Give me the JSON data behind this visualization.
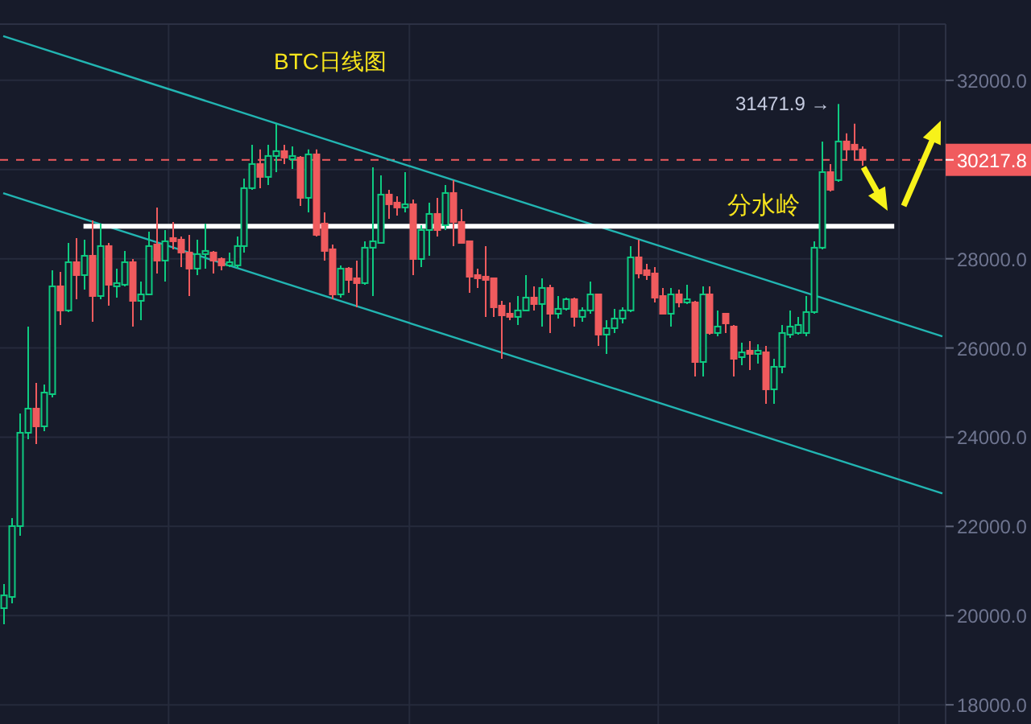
{
  "chart_data": {
    "type": "candlestick",
    "title": "BTC日线图",
    "categories": [
      null,
      null,
      null,
      null,
      null,
      null,
      null,
      null,
      null,
      null,
      null,
      null,
      null,
      null,
      null,
      null,
      null,
      null,
      null,
      null,
      null,
      null,
      null,
      null,
      null,
      null,
      null,
      null,
      null,
      null,
      null,
      null,
      null,
      null,
      null,
      null,
      null,
      null,
      null,
      null,
      null,
      null,
      null,
      null,
      null,
      null,
      null,
      null,
      null,
      null,
      null,
      null,
      null,
      null,
      null,
      null,
      null,
      null,
      null,
      null,
      null,
      null,
      null,
      null,
      null,
      null,
      null,
      null,
      null,
      null,
      null,
      null,
      null,
      null,
      null,
      null,
      null,
      null,
      null,
      null,
      null,
      null,
      null,
      null,
      null,
      null,
      null,
      null,
      null,
      null,
      null,
      null,
      null,
      null,
      null,
      null,
      null,
      null,
      null,
      null,
      null,
      null,
      null,
      null,
      null,
      null,
      null,
      null,
      null,
      null,
      null,
      null,
      null,
      null,
      null,
      null,
      null,
      null
    ],
    "ohlc": [
      [
        20166,
        20707,
        19805,
        20454
      ],
      [
        20418,
        22186,
        20274,
        22006
      ],
      [
        22006,
        24531,
        21790,
        24099
      ],
      [
        24099,
        26480,
        23954,
        24640
      ],
      [
        24640,
        25217,
        23846,
        24243
      ],
      [
        24243,
        25181,
        24135,
        25000
      ],
      [
        24964,
        27743,
        24892,
        27382
      ],
      [
        27382,
        27707,
        26516,
        26841
      ],
      [
        26841,
        28356,
        26805,
        27923
      ],
      [
        27923,
        28464,
        27093,
        27634
      ],
      [
        27634,
        28428,
        27310,
        28067
      ],
      [
        28067,
        28861,
        26588,
        27165
      ],
      [
        27165,
        28789,
        27093,
        28284
      ],
      [
        28284,
        28356,
        26949,
        27418
      ],
      [
        27382,
        27779,
        27129,
        27454
      ],
      [
        27418,
        28176,
        27382,
        27923
      ],
      [
        27923,
        27995,
        26480,
        27057
      ],
      [
        27057,
        27490,
        26624,
        27201
      ],
      [
        27201,
        28608,
        27201,
        28284
      ],
      [
        28320,
        29150,
        27670,
        27959
      ],
      [
        27959,
        28644,
        27490,
        28392
      ],
      [
        28464,
        28825,
        28212,
        28392
      ],
      [
        28428,
        28500,
        27815,
        28140
      ],
      [
        28140,
        28536,
        27165,
        27779
      ],
      [
        27779,
        28428,
        27634,
        28104
      ],
      [
        28104,
        28789,
        27779,
        28176
      ],
      [
        28140,
        28176,
        27670,
        27959
      ],
      [
        27995,
        28031,
        27743,
        27851
      ],
      [
        27851,
        28140,
        27815,
        27923
      ],
      [
        27851,
        28500,
        27779,
        28284
      ],
      [
        28284,
        29799,
        28140,
        29583
      ],
      [
        29583,
        30557,
        29547,
        30124
      ],
      [
        30124,
        30449,
        29583,
        29835
      ],
      [
        29835,
        30557,
        29655,
        30304
      ],
      [
        30304,
        31026,
        29943,
        30413
      ],
      [
        30413,
        30557,
        30124,
        30268
      ],
      [
        30232,
        30521,
        30016,
        30304
      ],
      [
        30268,
        30304,
        29186,
        29366
      ],
      [
        29366,
        30449,
        29041,
        30340
      ],
      [
        30340,
        30449,
        28500,
        28536
      ],
      [
        28789,
        29041,
        27959,
        28176
      ],
      [
        28212,
        28320,
        27093,
        27201
      ],
      [
        27201,
        27851,
        27129,
        27779
      ],
      [
        27779,
        27815,
        27237,
        27526
      ],
      [
        27562,
        27959,
        26913,
        27454
      ],
      [
        27454,
        28392,
        27418,
        28248
      ],
      [
        28248,
        30052,
        27165,
        28392
      ],
      [
        28356,
        29871,
        28356,
        29438
      ],
      [
        29438,
        29547,
        28897,
        29222
      ],
      [
        29258,
        29402,
        28969,
        29150
      ],
      [
        29150,
        29943,
        29041,
        29222
      ],
      [
        29222,
        29330,
        27634,
        27995
      ],
      [
        27995,
        28753,
        27815,
        28644
      ],
      [
        28644,
        29258,
        28067,
        29005
      ],
      [
        29005,
        29366,
        28500,
        28644
      ],
      [
        28753,
        29655,
        28644,
        29474
      ],
      [
        29474,
        29763,
        28284,
        28825
      ],
      [
        28825,
        29113,
        28356,
        28356
      ],
      [
        28392,
        28392,
        27237,
        27598
      ],
      [
        27634,
        27779,
        27346,
        27562
      ],
      [
        27598,
        28284,
        26697,
        27526
      ],
      [
        27562,
        27562,
        26697,
        26913
      ],
      [
        26949,
        27057,
        25758,
        26732
      ],
      [
        26768,
        27021,
        26624,
        26697
      ],
      [
        26697,
        27165,
        26516,
        26841
      ],
      [
        26841,
        27634,
        26841,
        27129
      ],
      [
        27129,
        27382,
        26841,
        26985
      ],
      [
        26985,
        27562,
        26480,
        27346
      ],
      [
        27346,
        27418,
        26336,
        26768
      ],
      [
        26768,
        27165,
        26660,
        26877
      ],
      [
        26877,
        27129,
        26841,
        27093
      ],
      [
        27093,
        27129,
        26480,
        26697
      ],
      [
        26697,
        26913,
        26588,
        26841
      ],
      [
        26841,
        27490,
        26768,
        27201
      ],
      [
        27201,
        27201,
        26047,
        26300
      ],
      [
        26300,
        26624,
        25867,
        26444
      ],
      [
        26444,
        26877,
        26336,
        26660
      ],
      [
        26660,
        26913,
        26552,
        26841
      ],
      [
        26841,
        28284,
        26805,
        28031
      ],
      [
        28031,
        28428,
        27562,
        27670
      ],
      [
        27743,
        27887,
        27526,
        27634
      ],
      [
        27670,
        27815,
        27021,
        27129
      ],
      [
        27165,
        27346,
        26768,
        26768
      ],
      [
        26768,
        27346,
        26480,
        27201
      ],
      [
        27201,
        27310,
        26913,
        27021
      ],
      [
        27021,
        27418,
        26985,
        27093
      ],
      [
        27021,
        27057,
        25361,
        25686
      ],
      [
        25686,
        27382,
        25361,
        27201
      ],
      [
        27201,
        27382,
        26300,
        26336
      ],
      [
        26336,
        26841,
        26264,
        26480
      ],
      [
        26768,
        26768,
        26336,
        26552
      ],
      [
        26480,
        26516,
        25361,
        25758
      ],
      [
        25794,
        26119,
        25614,
        25903
      ],
      [
        25939,
        26155,
        25506,
        25867
      ],
      [
        25867,
        26083,
        25650,
        25939
      ],
      [
        25903,
        26047,
        24748,
        25073
      ],
      [
        25073,
        25758,
        24748,
        25578
      ],
      [
        25578,
        26516,
        25433,
        26336
      ],
      [
        26300,
        26841,
        26228,
        26480
      ],
      [
        26336,
        26697,
        26300,
        26516
      ],
      [
        26336,
        27165,
        26264,
        26805
      ],
      [
        26805,
        28392,
        26768,
        28248
      ],
      [
        28248,
        30629,
        28212,
        29943
      ],
      [
        29943,
        30124,
        29511,
        29547
      ],
      [
        29763,
        31471.9,
        29727,
        30629
      ],
      [
        30629,
        30810,
        30196,
        30449
      ],
      [
        30557,
        31026,
        30232,
        30449
      ],
      [
        30449,
        30521,
        30088,
        30217.8
      ],
      null,
      null,
      null,
      null,
      null,
      null,
      null,
      null,
      null,
      null
    ],
    "colors": [
      "#0ecb81",
      "#0ecb81",
      "#0ecb81",
      "#0ecb81",
      "#f05b5e",
      "#0ecb81",
      "#0ecb81",
      "#f05b5e",
      "#0ecb81",
      "#f05b5e",
      "#0ecb81",
      "#f05b5e",
      "#0ecb81",
      "#f05b5e",
      "#0ecb81",
      "#0ecb81",
      "#f05b5e",
      "#0ecb81",
      "#0ecb81",
      "#f05b5e",
      "#0ecb81",
      "#f05b5e",
      "#f05b5e",
      "#f05b5e",
      "#0ecb81",
      "#0ecb81",
      "#f05b5e",
      "#f05b5e",
      "#0ecb81",
      "#0ecb81",
      "#0ecb81",
      "#0ecb81",
      "#f05b5e",
      "#0ecb81",
      "#0ecb81",
      "#f05b5e",
      "#0ecb81",
      "#f05b5e",
      "#0ecb81",
      "#f05b5e",
      "#f05b5e",
      "#f05b5e",
      "#0ecb81",
      "#f05b5e",
      "#f05b5e",
      "#0ecb81",
      "#0ecb81",
      "#0ecb81",
      "#f05b5e",
      "#f05b5e",
      "#0ecb81",
      "#f05b5e",
      "#0ecb81",
      "#0ecb81",
      "#f05b5e",
      "#0ecb81",
      "#f05b5e",
      "#f05b5e",
      "#f05b5e",
      "#f05b5e",
      "#f05b5e",
      "#f05b5e",
      "#f05b5e",
      "#f05b5e",
      "#0ecb81",
      "#0ecb81",
      "#f05b5e",
      "#0ecb81",
      "#f05b5e",
      "#0ecb81",
      "#0ecb81",
      "#f05b5e",
      "#0ecb81",
      "#0ecb81",
      "#f05b5e",
      "#0ecb81",
      "#0ecb81",
      "#0ecb81",
      "#0ecb81",
      "#f05b5e",
      "#f05b5e",
      "#f05b5e",
      "#f05b5e",
      "#0ecb81",
      "#f05b5e",
      "#0ecb81",
      "#f05b5e",
      "#0ecb81",
      "#f05b5e",
      "#0ecb81",
      "#f05b5e",
      "#f05b5e",
      "#0ecb81",
      "#f05b5e",
      "#0ecb81",
      "#f05b5e",
      "#0ecb81",
      "#0ecb81",
      "#0ecb81",
      "#0ecb81",
      "#0ecb81",
      "#0ecb81",
      "#0ecb81",
      "#f05b5e",
      "#0ecb81",
      "#f05b5e",
      "#f05b5e",
      "#f05b5e",
      null,
      null,
      null,
      null,
      null,
      null,
      null,
      null,
      null,
      null
    ],
    "series": [
      {
        "type": "line",
        "values": [
          32990,
          null,
          null,
          null,
          null,
          null,
          null,
          null,
          null,
          null,
          null,
          null,
          null,
          null,
          null,
          null,
          null,
          null,
          null,
          null,
          null,
          null,
          null,
          null,
          null,
          null,
          null,
          null,
          null,
          null,
          null,
          null,
          null,
          null,
          null,
          null,
          null,
          null,
          null,
          null,
          null,
          null,
          null,
          null,
          null,
          null,
          null,
          null,
          null,
          null,
          null,
          null,
          null,
          null,
          null,
          null,
          null,
          null,
          null,
          null,
          null,
          null,
          null,
          null,
          null,
          null,
          null,
          null,
          null,
          null,
          null,
          null,
          null,
          null,
          null,
          null,
          null,
          null,
          null,
          null,
          null,
          null,
          null,
          null,
          null,
          null,
          null,
          null,
          null,
          null,
          null,
          null,
          null,
          null,
          null,
          null,
          null,
          null,
          null,
          null,
          null,
          null,
          null,
          null,
          null,
          null,
          null,
          null,
          null,
          null,
          null,
          null,
          null,
          null,
          null,
          null,
          null,
          26260
        ],
        "color": "#22b5b2"
      },
      {
        "type": "line",
        "values": [
          29470,
          null,
          null,
          null,
          null,
          null,
          null,
          null,
          null,
          null,
          null,
          null,
          null,
          null,
          null,
          null,
          null,
          null,
          null,
          null,
          null,
          null,
          null,
          null,
          null,
          null,
          null,
          null,
          null,
          null,
          null,
          null,
          null,
          null,
          null,
          null,
          null,
          null,
          null,
          null,
          null,
          null,
          null,
          null,
          null,
          null,
          null,
          null,
          null,
          null,
          null,
          null,
          null,
          null,
          null,
          null,
          null,
          null,
          null,
          null,
          null,
          null,
          null,
          null,
          null,
          null,
          null,
          null,
          null,
          null,
          null,
          null,
          null,
          null,
          null,
          null,
          null,
          null,
          null,
          null,
          null,
          null,
          null,
          null,
          null,
          null,
          null,
          null,
          null,
          null,
          null,
          null,
          null,
          null,
          null,
          null,
          null,
          null,
          null,
          null,
          null,
          null,
          null,
          null,
          null,
          null,
          null,
          null,
          null,
          null,
          null,
          null,
          null,
          null,
          null,
          null,
          null,
          22740
        ],
        "color": "#22b5b2"
      },
      {
        "type": "line",
        "name": "分水岭",
        "values": [
          null,
          null,
          null,
          null,
          null,
          null,
          null,
          null,
          null,
          null,
          28730,
          null,
          null,
          null,
          null,
          null,
          null,
          null,
          null,
          null,
          null,
          null,
          null,
          null,
          null,
          null,
          null,
          null,
          null,
          null,
          null,
          null,
          null,
          null,
          null,
          null,
          null,
          null,
          null,
          null,
          null,
          null,
          null,
          null,
          null,
          null,
          null,
          null,
          null,
          null,
          null,
          null,
          null,
          null,
          null,
          null,
          null,
          null,
          null,
          null,
          null,
          null,
          null,
          null,
          null,
          null,
          null,
          null,
          null,
          null,
          null,
          null,
          null,
          null,
          null,
          null,
          null,
          null,
          null,
          null,
          null,
          null,
          null,
          null,
          null,
          null,
          null,
          null,
          null,
          null,
          null,
          null,
          null,
          null,
          null,
          null,
          null,
          null,
          null,
          null,
          null,
          null,
          null,
          null,
          null,
          null,
          null,
          null,
          null,
          null,
          null,
          28730,
          null,
          null,
          null,
          null,
          null,
          null
        ],
        "color": "#ffffff"
      }
    ],
    "ref_lines": [
      {
        "axis": "y",
        "value": 30217.8,
        "label": "30217.8",
        "color": "#f05b5e",
        "line_style": "dashed"
      }
    ],
    "annotations": [
      "31471.9 →"
    ],
    "ylim": [
      17570,
      33260
    ],
    "yticks": [
      {
        "value": 18000,
        "label": "18000.0"
      },
      {
        "value": 20000,
        "label": "20000.0"
      },
      {
        "value": 22000,
        "label": "22000.0"
      },
      {
        "value": 24000,
        "label": "24000.0"
      },
      {
        "value": 26000,
        "label": "26000.0"
      },
      {
        "value": 28000,
        "label": "28000.0"
      },
      {
        "value": 30000,
        "label": null
      },
      {
        "value": 32000,
        "label": "32000.0"
      }
    ],
    "grid": true,
    "tick_labels": "y"
  }
}
